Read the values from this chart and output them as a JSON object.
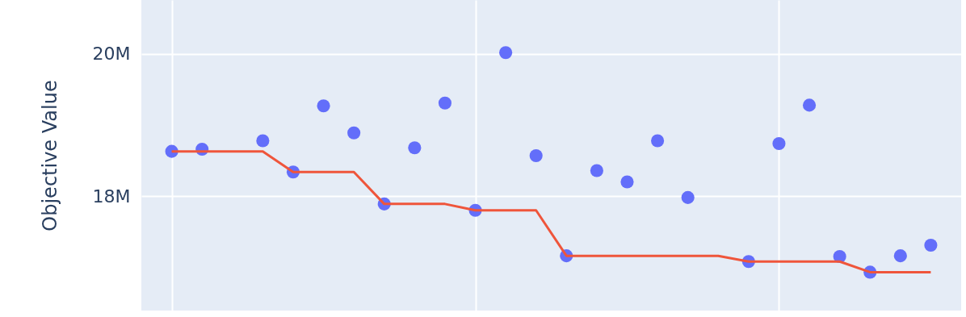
{
  "chart_data": {
    "type": "scatter",
    "ylabel": "Objective Value",
    "categories": [
      null,
      null,
      null,
      null,
      null,
      null,
      null,
      null,
      null,
      null,
      null,
      null,
      null,
      null,
      null,
      null,
      null,
      null,
      null,
      null,
      null,
      null,
      null,
      null,
      null,
      null
    ],
    "ylim": [
      16.39,
      20.76
    ],
    "yticks": [
      {
        "value": 18,
        "label": "18M"
      },
      {
        "value": 20,
        "label": "20M"
      }
    ],
    "grid": true,
    "tick_labels": "y",
    "series": [
      {
        "type": "scatter",
        "color": "#636efa",
        "marker": "circle",
        "values": [
          18.63,
          18.66,
          null,
          18.78,
          18.34,
          19.27,
          18.89,
          17.89,
          18.68,
          19.31,
          17.8,
          20.02,
          18.57,
          17.16,
          18.36,
          18.2,
          18.78,
          17.98,
          null,
          17.08,
          18.74,
          19.28,
          17.15,
          16.93,
          17.16,
          17.31
        ]
      },
      {
        "type": "line",
        "color": "#ef553b",
        "line_style": "solid",
        "values": [
          18.63,
          18.63,
          18.63,
          18.63,
          18.34,
          18.34,
          18.34,
          17.89,
          17.89,
          17.89,
          17.8,
          17.8,
          17.8,
          17.16,
          17.16,
          17.16,
          17.16,
          17.16,
          17.16,
          17.08,
          17.08,
          17.08,
          17.08,
          16.93,
          16.93,
          16.93
        ]
      }
    ]
  }
}
